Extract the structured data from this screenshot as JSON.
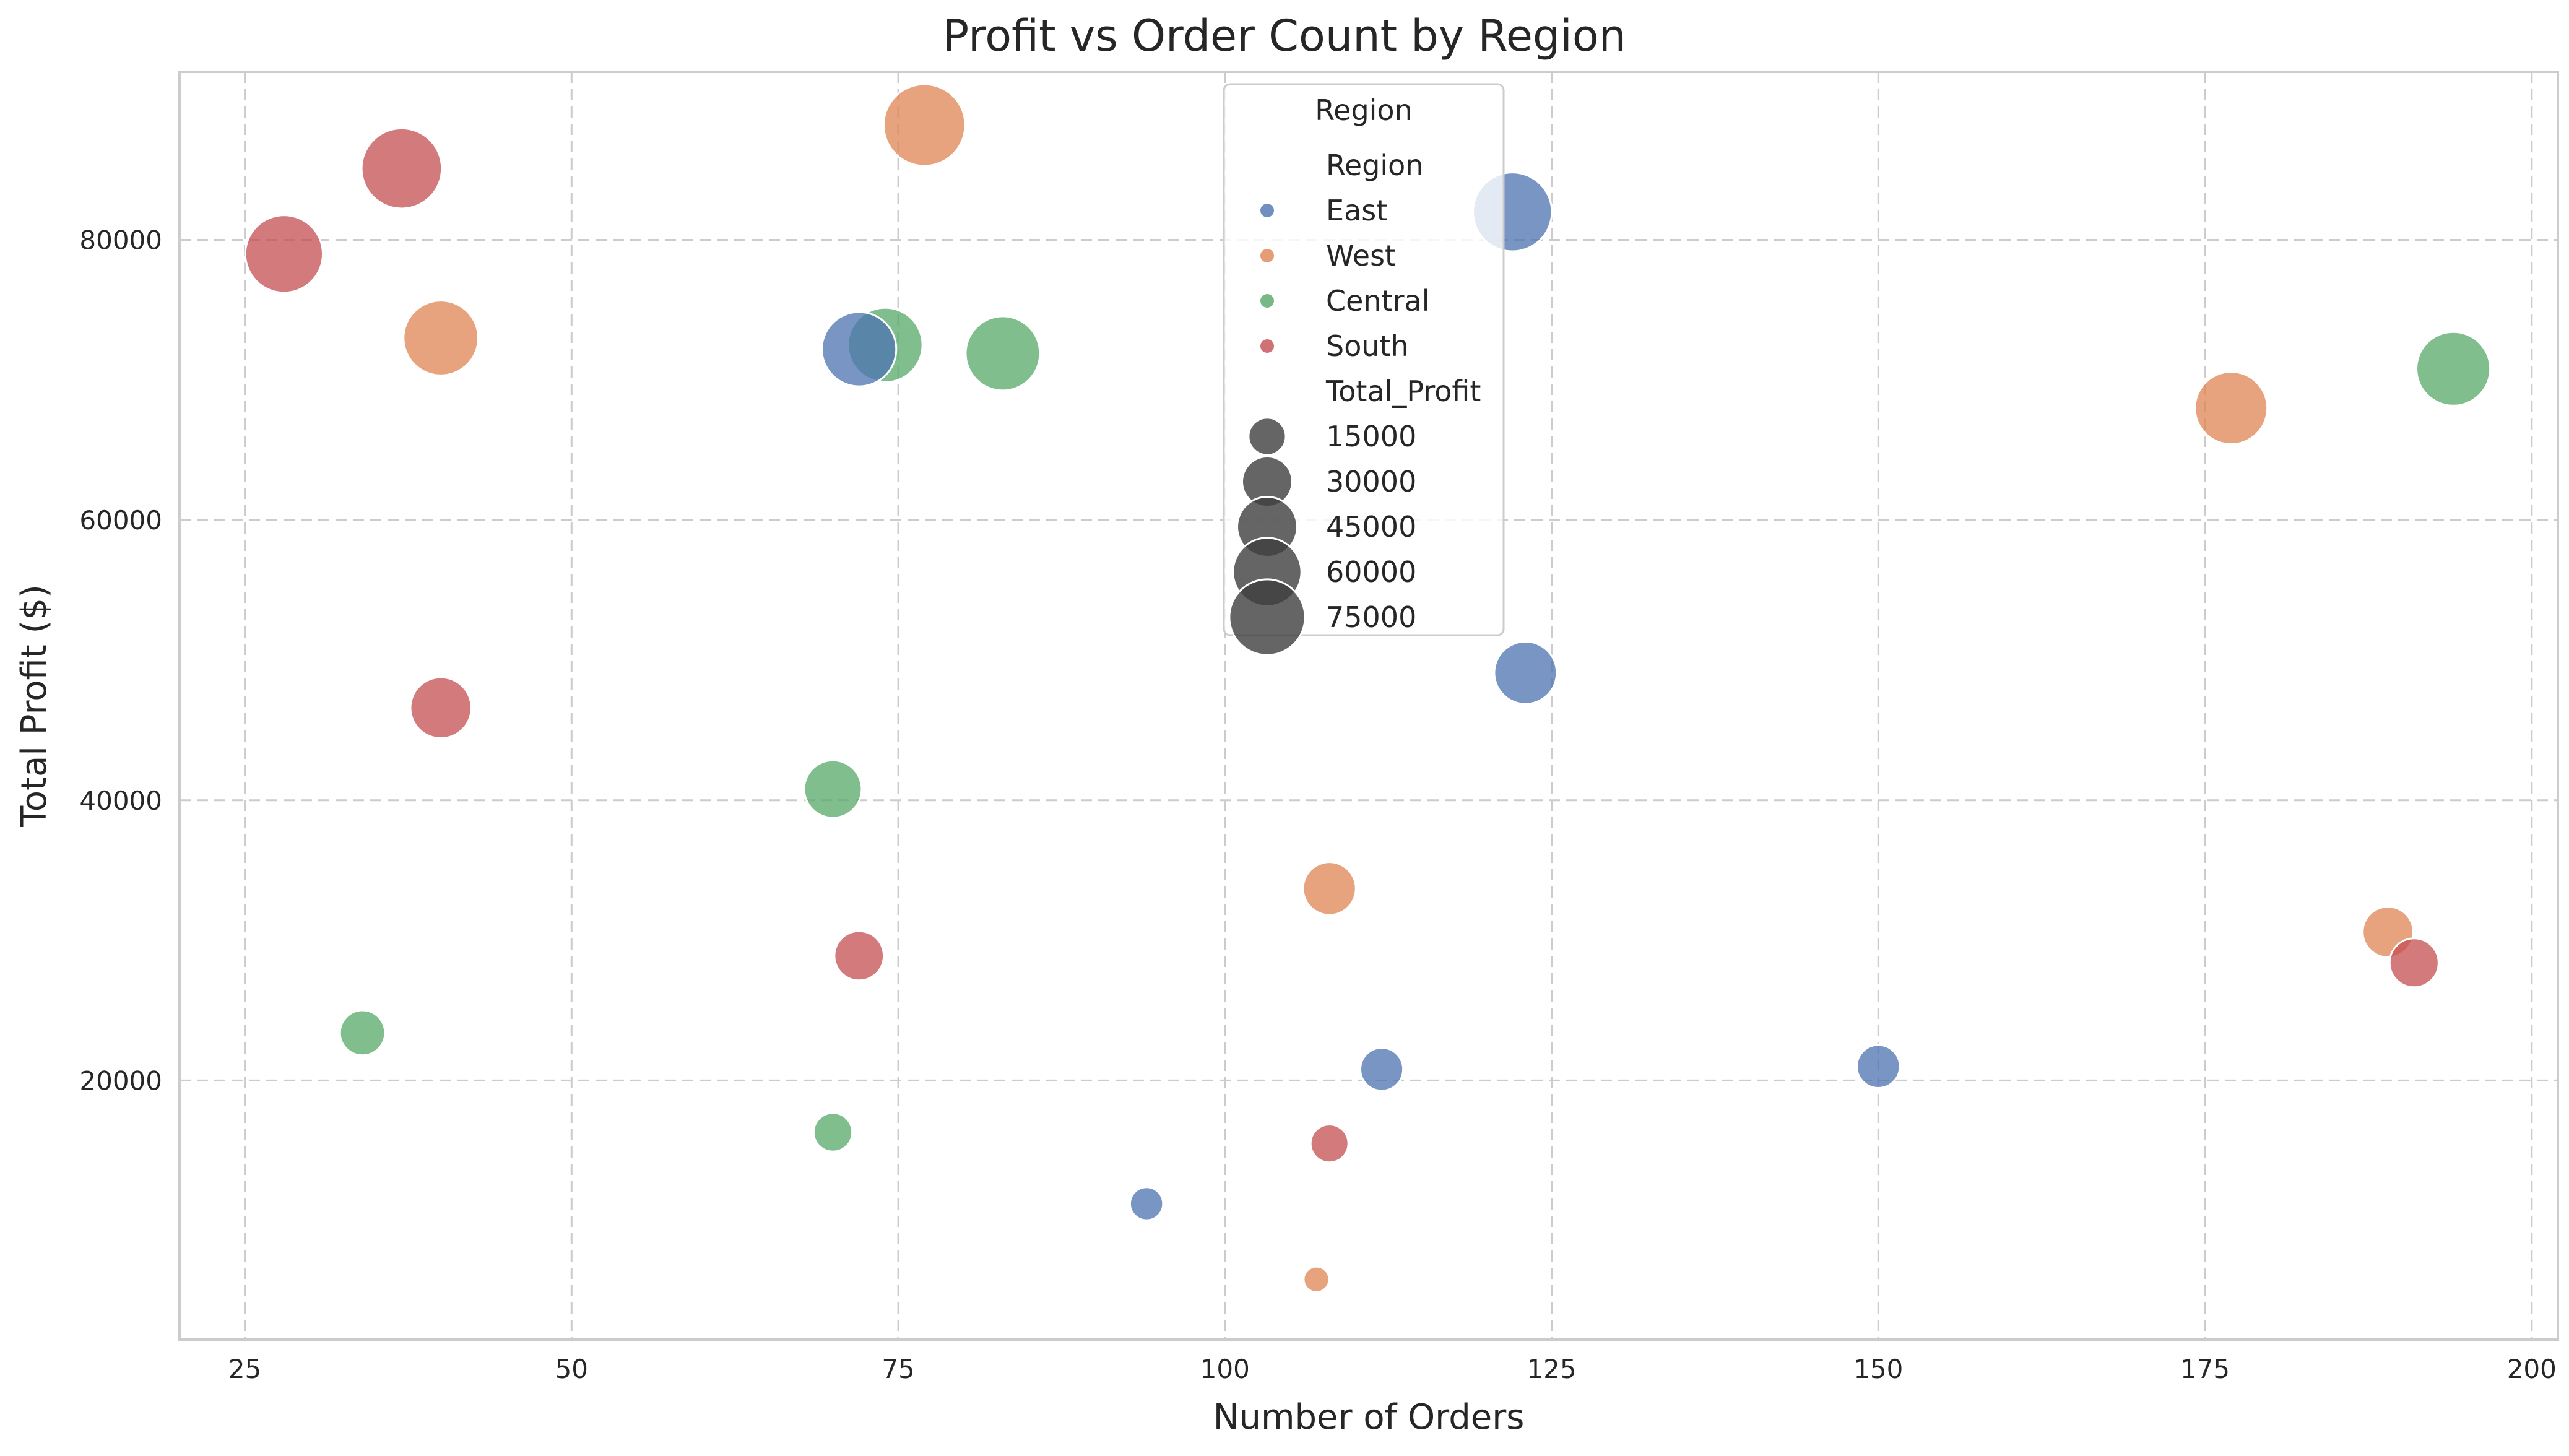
{
  "chart_data": {
    "type": "scatter",
    "title": "Profit vs Order Count by Region",
    "xlabel": "Number of Orders",
    "ylabel": "Total Profit ($)",
    "xlim": [
      20,
      202
    ],
    "ylim": [
      1500,
      92000
    ],
    "xticks": [
      25,
      50,
      75,
      100,
      125,
      150,
      175,
      200
    ],
    "yticks": [
      20000,
      40000,
      60000,
      80000
    ],
    "grid": true,
    "legend_placement": "top-center",
    "legend_title": "Region",
    "legend_hue_title": "Region",
    "legend_size_title": "Total_Profit",
    "size_legend": [
      15000,
      30000,
      45000,
      60000,
      75000
    ],
    "colors": {
      "East": "#4c72b0",
      "West": "#dd8452",
      "Central": "#55a868",
      "South": "#c44e52"
    },
    "series": [
      {
        "name": "East",
        "color": "#4c72b0",
        "points": [
          {
            "x": 122,
            "y": 82000
          },
          {
            "x": 72,
            "y": 72200
          },
          {
            "x": 123,
            "y": 49100
          },
          {
            "x": 112,
            "y": 20800
          },
          {
            "x": 150,
            "y": 21000
          },
          {
            "x": 94,
            "y": 11200
          }
        ]
      },
      {
        "name": "West",
        "color": "#dd8452",
        "points": [
          {
            "x": 77,
            "y": 88200
          },
          {
            "x": 40,
            "y": 73000
          },
          {
            "x": 177,
            "y": 68000
          },
          {
            "x": 108,
            "y": 33700
          },
          {
            "x": 189,
            "y": 30600
          },
          {
            "x": 107,
            "y": 5800
          }
        ]
      },
      {
        "name": "Central",
        "color": "#55a868",
        "points": [
          {
            "x": 74,
            "y": 72500
          },
          {
            "x": 83,
            "y": 71900
          },
          {
            "x": 194,
            "y": 70800
          },
          {
            "x": 70,
            "y": 40800
          },
          {
            "x": 34,
            "y": 23400
          },
          {
            "x": 70,
            "y": 16300
          }
        ]
      },
      {
        "name": "South",
        "color": "#c44e52",
        "points": [
          {
            "x": 37,
            "y": 85100
          },
          {
            "x": 28,
            "y": 79000
          },
          {
            "x": 40,
            "y": 46600
          },
          {
            "x": 72,
            "y": 28900
          },
          {
            "x": 191,
            "y": 28400
          },
          {
            "x": 108,
            "y": 15500
          }
        ]
      }
    ]
  }
}
